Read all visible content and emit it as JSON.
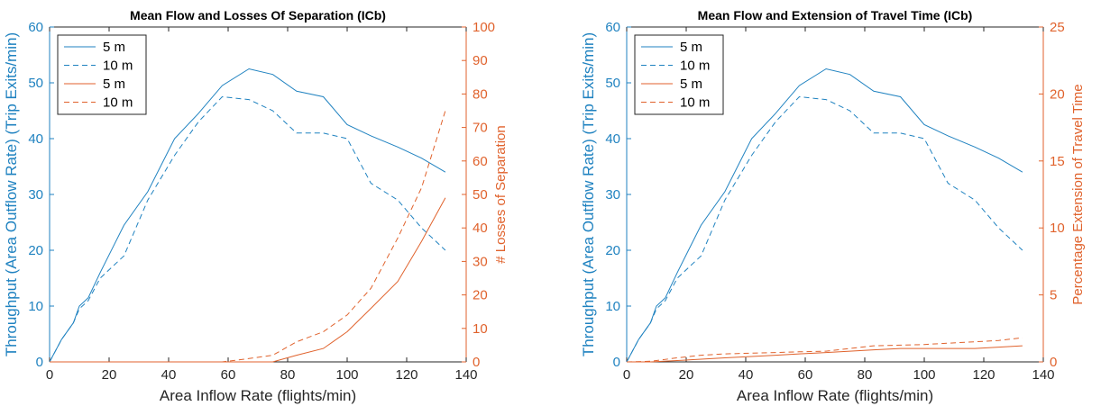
{
  "chart_data": [
    {
      "type": "line",
      "title": "Mean Flow and Losses Of Separation (ICb)",
      "xlabel": "Area Inflow Rate (flights/min)",
      "ylabel_left": "Throughput (Area Outflow Rate) (Trip Exits/min)",
      "ylabel_right": "# Losses of Separation",
      "xlim": [
        0,
        140
      ],
      "ylim_left": [
        0,
        60
      ],
      "ylim_right": [
        0,
        100
      ],
      "xticks": [
        "0",
        "20",
        "40",
        "60",
        "80",
        "100",
        "120",
        "140"
      ],
      "yticks_left": [
        "0",
        "10",
        "20",
        "30",
        "40",
        "50",
        "60"
      ],
      "yticks_right": [
        "0",
        "10",
        "20",
        "30",
        "40",
        "50",
        "60",
        "70",
        "80",
        "90",
        "100"
      ],
      "legend_position": "top-left",
      "colors": {
        "left": "#1f82c0",
        "right": "#e0622c"
      },
      "series": [
        {
          "name": "5 m",
          "axis": "left",
          "style": "solid",
          "x": [
            0,
            4,
            8,
            10,
            13,
            17,
            25,
            33,
            42,
            50,
            58,
            67,
            75,
            83,
            92,
            100,
            108,
            117,
            125,
            133
          ],
          "y": [
            0,
            4,
            7,
            10,
            11.5,
            16,
            24.5,
            30.5,
            40,
            44.5,
            49.5,
            52.5,
            51.5,
            48.5,
            47.5,
            42.5,
            40.5,
            38.5,
            36.5,
            34
          ]
        },
        {
          "name": "10 m",
          "axis": "left",
          "style": "dashed",
          "x": [
            0,
            4,
            8,
            10,
            13,
            17,
            25,
            33,
            42,
            50,
            58,
            67,
            75,
            83,
            92,
            100,
            108,
            117,
            125,
            133
          ],
          "y": [
            0,
            4,
            7,
            9.5,
            11,
            15,
            19,
            29,
            37,
            43,
            47.5,
            47,
            45,
            41,
            41,
            40,
            32,
            29,
            24,
            20
          ]
        },
        {
          "name": "5 m",
          "axis": "right",
          "style": "solid",
          "x": [
            0,
            75,
            83,
            92,
            100,
            108,
            117,
            125,
            133
          ],
          "y": [
            0,
            0,
            2,
            4,
            9,
            16,
            24,
            36,
            49
          ]
        },
        {
          "name": "10 m",
          "axis": "right",
          "style": "dashed",
          "x": [
            0,
            58,
            67,
            75,
            83,
            92,
            100,
            108,
            117,
            125,
            133
          ],
          "y": [
            0,
            0,
            1,
            2,
            6,
            9,
            14,
            22,
            37,
            52,
            75
          ]
        }
      ]
    },
    {
      "type": "line",
      "title": "Mean Flow and Extension of Travel Time (ICb)",
      "xlabel": "Area Inflow Rate (flights/min)",
      "ylabel_left": "Throughput (Area Outflow Rate) (Trip Exits/min)",
      "ylabel_right": "Percentage Extension of Travel Time",
      "xlim": [
        0,
        140
      ],
      "ylim_left": [
        0,
        60
      ],
      "ylim_right": [
        0,
        25
      ],
      "xticks": [
        "0",
        "20",
        "40",
        "60",
        "80",
        "100",
        "120",
        "140"
      ],
      "yticks_left": [
        "0",
        "10",
        "20",
        "30",
        "40",
        "50",
        "60"
      ],
      "yticks_right": [
        "0",
        "5",
        "10",
        "15",
        "20",
        "25"
      ],
      "legend_position": "top-left",
      "colors": {
        "left": "#1f82c0",
        "right": "#e0622c"
      },
      "series": [
        {
          "name": "5 m",
          "axis": "left",
          "style": "solid",
          "x": [
            0,
            4,
            8,
            10,
            13,
            17,
            25,
            33,
            42,
            50,
            58,
            67,
            75,
            83,
            92,
            100,
            108,
            117,
            125,
            133
          ],
          "y": [
            0,
            4,
            7,
            10,
            11.5,
            16,
            24.5,
            30.5,
            40,
            44.5,
            49.5,
            52.5,
            51.5,
            48.5,
            47.5,
            42.5,
            40.5,
            38.5,
            36.5,
            34
          ]
        },
        {
          "name": "10 m",
          "axis": "left",
          "style": "dashed",
          "x": [
            0,
            4,
            8,
            10,
            13,
            17,
            25,
            33,
            42,
            50,
            58,
            67,
            75,
            83,
            92,
            100,
            108,
            117,
            125,
            133
          ],
          "y": [
            0,
            4,
            7,
            9.5,
            11,
            15,
            19,
            29,
            37,
            43,
            47.5,
            47,
            45,
            41,
            41,
            40,
            32,
            29,
            24,
            20
          ]
        },
        {
          "name": "5 m",
          "axis": "right",
          "style": "solid",
          "x": [
            0,
            8,
            17,
            25,
            33,
            42,
            50,
            58,
            67,
            75,
            83,
            92,
            100,
            108,
            117,
            125,
            133
          ],
          "y": [
            0,
            0,
            0.1,
            0.2,
            0.3,
            0.4,
            0.5,
            0.6,
            0.7,
            0.8,
            0.9,
            1.0,
            1.0,
            1.0,
            1.0,
            1.1,
            1.2
          ]
        },
        {
          "name": "10 m",
          "axis": "right",
          "style": "dashed",
          "x": [
            0,
            8,
            17,
            25,
            33,
            42,
            50,
            58,
            67,
            75,
            83,
            92,
            100,
            108,
            117,
            125,
            133
          ],
          "y": [
            0,
            0.05,
            0.3,
            0.5,
            0.6,
            0.65,
            0.7,
            0.75,
            0.8,
            1.0,
            1.2,
            1.25,
            1.3,
            1.4,
            1.5,
            1.6,
            1.8
          ]
        }
      ]
    }
  ]
}
